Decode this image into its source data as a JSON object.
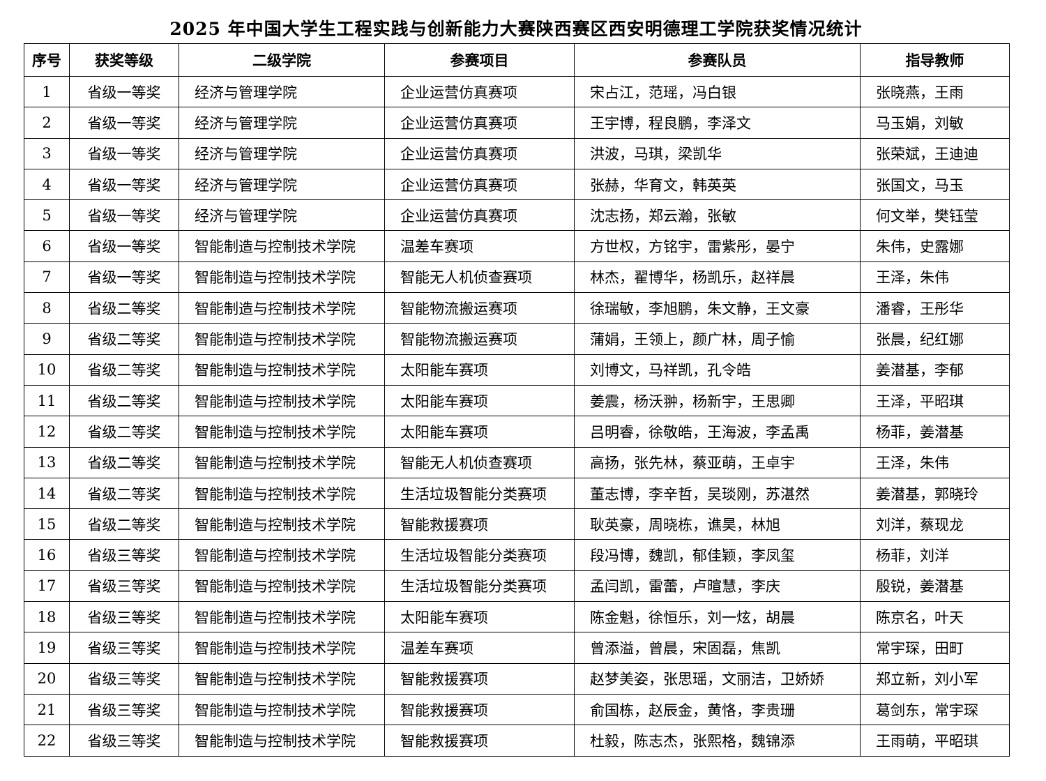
{
  "title": "2025 年中国大学生工程实践与创新能力大赛陕西赛区西安明德理工学院获奖情况统计",
  "headers": [
    "序号",
    "获奖等级",
    "二级学院",
    "参赛项目",
    "参赛队员",
    "指导教师"
  ],
  "rows": [
    [
      "1",
      "省级一等奖",
      "经济与管理学院",
      "企业运营仿真赛项",
      "宋占江，范瑶，冯白银",
      "张晓燕，王雨"
    ],
    [
      "2",
      "省级一等奖",
      "经济与管理学院",
      "企业运营仿真赛项",
      "王宇博，程良鹏，李泽文",
      "马玉娟，刘敏"
    ],
    [
      "3",
      "省级一等奖",
      "经济与管理学院",
      "企业运营仿真赛项",
      "洪波，马琪，梁凯华",
      "张荣斌，王迪迪"
    ],
    [
      "4",
      "省级一等奖",
      "经济与管理学院",
      "企业运营仿真赛项",
      "张赫，华育文，韩英英",
      "张国文，马玉"
    ],
    [
      "5",
      "省级一等奖",
      "经济与管理学院",
      "企业运营仿真赛项",
      "沈志扬，郑云瀚，张敏",
      "何文举，樊钰莹"
    ],
    [
      "6",
      "省级一等奖",
      "智能制造与控制技术学院",
      "温差车赛项",
      "方世权，方铭宇，雷紫彤，晏宁",
      "朱伟，史露娜"
    ],
    [
      "7",
      "省级一等奖",
      "智能制造与控制技术学院",
      "智能无人机侦查赛项",
      "林杰，翟博华，杨凯乐，赵祥晨",
      "王泽，朱伟"
    ],
    [
      "8",
      "省级二等奖",
      "智能制造与控制技术学院",
      "智能物流搬运赛项",
      "徐瑞敏，李旭鹏，朱文静，王文豪",
      "潘睿，王彤华"
    ],
    [
      "9",
      "省级二等奖",
      "智能制造与控制技术学院",
      "智能物流搬运赛项",
      "蒲娟，王领上，颜广林，周子愉",
      "张晨，纪红娜"
    ],
    [
      "10",
      "省级二等奖",
      "智能制造与控制技术学院",
      "太阳能车赛项",
      "刘博文，马祥凯，孔令皓",
      "姜潜基，李郁"
    ],
    [
      "11",
      "省级二等奖",
      "智能制造与控制技术学院",
      "太阳能车赛项",
      "姜震，杨沃翀，杨新宇，王思卿",
      "王泽，平昭琪"
    ],
    [
      "12",
      "省级二等奖",
      "智能制造与控制技术学院",
      "太阳能车赛项",
      "吕明睿，徐敬皓，王海波，李孟禹",
      "杨菲，姜潜基"
    ],
    [
      "13",
      "省级二等奖",
      "智能制造与控制技术学院",
      "智能无人机侦查赛项",
      "高扬，张先林，蔡亚萌，王卓宇",
      "王泽，朱伟"
    ],
    [
      "14",
      "省级二等奖",
      "智能制造与控制技术学院",
      "生活垃圾智能分类赛项",
      "董志博，李辛哲，吴琰刚，苏湛然",
      "姜潜基，郭晓玲"
    ],
    [
      "15",
      "省级二等奖",
      "智能制造与控制技术学院",
      "智能救援赛项",
      "耿英豪，周晓栋，谯昊，林旭",
      "刘洋，蔡现龙"
    ],
    [
      "16",
      "省级三等奖",
      "智能制造与控制技术学院",
      "生活垃圾智能分类赛项",
      "段冯博，魏凯，郁佳颖，李凤玺",
      "杨菲，刘洋"
    ],
    [
      "17",
      "省级三等奖",
      "智能制造与控制技术学院",
      "生活垃圾智能分类赛项",
      "孟闫凯，雷蕾，卢暄慧，李庆",
      "殷锐，姜潜基"
    ],
    [
      "18",
      "省级三等奖",
      "智能制造与控制技术学院",
      "太阳能车赛项",
      "陈金魁，徐恒乐，刘一炫，胡晨",
      "陈京名，叶天"
    ],
    [
      "19",
      "省级三等奖",
      "智能制造与控制技术学院",
      "温差车赛项",
      "曾添溢，曾晨，宋固磊，焦凯",
      "常宇琛，田町"
    ],
    [
      "20",
      "省级三等奖",
      "智能制造与控制技术学院",
      "智能救援赛项",
      "赵梦美姿，张思瑶，文丽洁，卫娇娇",
      "郑立新，刘小军"
    ],
    [
      "21",
      "省级三等奖",
      "智能制造与控制技术学院",
      "智能救援赛项",
      "俞国栋，赵辰金，黄恪，李贵珊",
      "葛剑东，常宇琛"
    ],
    [
      "22",
      "省级三等奖",
      "智能制造与控制技术学院",
      "智能救援赛项",
      "杜毅，陈志杰，张熙格，魏锦添",
      "王雨萌，平昭琪"
    ]
  ]
}
